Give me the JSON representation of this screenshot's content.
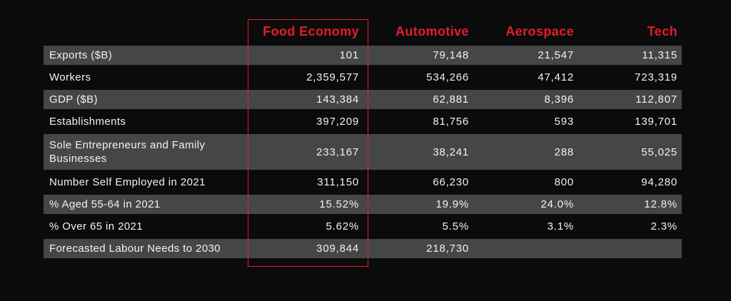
{
  "chart_data": {
    "type": "table",
    "columns": [
      "",
      "Food Economy",
      "Automotive",
      "Aerospace",
      "Tech"
    ],
    "rows": [
      {
        "label": "Exports ($B)",
        "values": [
          "101",
          "79,148",
          "21,547",
          "11,315"
        ]
      },
      {
        "label": "Workers",
        "values": [
          "2,359,577",
          "534,266",
          "47,412",
          "723,319"
        ]
      },
      {
        "label": "GDP ($B)",
        "values": [
          "143,384",
          "62,881",
          "8,396",
          "112,807"
        ]
      },
      {
        "label": "Establishments",
        "values": [
          "397,209",
          "81,756",
          "593",
          "139,701"
        ]
      },
      {
        "label": "Sole Entrepreneurs and Family Businesses",
        "values": [
          "233,167",
          "38,241",
          "288",
          "55,025"
        ]
      },
      {
        "label": "Number Self Employed in 2021",
        "values": [
          "311,150",
          "66,230",
          "800",
          "94,280"
        ]
      },
      {
        "label": "% Aged 55-64 in 2021",
        "values": [
          "15.52%",
          "19.9%",
          "24.0%",
          "12.8%"
        ]
      },
      {
        "label": "% Over 65 in 2021",
        "values": [
          "5.62%",
          "5.5%",
          "3.1%",
          "2.3%"
        ]
      },
      {
        "label": "Forecasted Labour Needs to 2030",
        "values": [
          "309,844",
          "218,730",
          "",
          ""
        ]
      }
    ],
    "highlighted_column": "Food Economy",
    "layout": {
      "shaded_row_indices": [
        0,
        2,
        4,
        6,
        8
      ],
      "value_alignment": "right",
      "header_position": "top"
    },
    "colors": {
      "background": "#0b0b0c",
      "row_shade": "#454648",
      "header_accent": "#e31e26",
      "highlight_border": "#e31e26",
      "text": "#f2f2f3"
    }
  }
}
